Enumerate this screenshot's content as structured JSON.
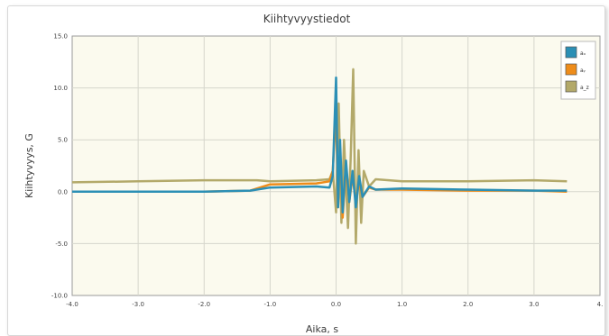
{
  "chart_data": {
    "type": "line",
    "title": "Kiihtyvyystiedot",
    "xlabel": "Aika, s",
    "ylabel": "Kiihtyvyys, G",
    "xlim": [
      -4.0,
      4.0
    ],
    "ylim": [
      -10.0,
      15.0
    ],
    "x_ticks": [
      "-4.0",
      "-3.0",
      "-2.0",
      "-1.0",
      "0.0",
      "1.0",
      "2.0",
      "3.0",
      "4."
    ],
    "y_ticks": [
      "15.0",
      "10.0",
      "5.0",
      "0.0",
      "-5.0",
      "-10.0"
    ],
    "grid": true,
    "legend_position": "top-right",
    "plot_background": "#fbfaee",
    "series": [
      {
        "name": "aₓ",
        "color": "#2b8fb5",
        "x": [
          -4.0,
          -3.0,
          -2.0,
          -1.3,
          -1.0,
          -0.3,
          -0.1,
          -0.05,
          0.0,
          0.03,
          0.06,
          0.1,
          0.15,
          0.2,
          0.25,
          0.3,
          0.35,
          0.4,
          0.5,
          0.6,
          1.0,
          2.0,
          3.0,
          3.5
        ],
        "values": [
          0.0,
          0.0,
          0.0,
          0.1,
          0.4,
          0.5,
          0.4,
          1.5,
          11.0,
          -1.5,
          5.0,
          -2.0,
          3.0,
          -1.0,
          2.0,
          -1.5,
          1.5,
          -0.5,
          0.5,
          0.2,
          0.3,
          0.2,
          0.1,
          0.1
        ]
      },
      {
        "name": "aᵧ",
        "color": "#ee8c1a",
        "x": [
          -4.0,
          -3.0,
          -2.0,
          -1.3,
          -1.1,
          -1.0,
          -0.3,
          -0.1,
          -0.05,
          0.0,
          0.03,
          0.06,
          0.1,
          0.15,
          0.2,
          0.25,
          0.3,
          0.35,
          0.4,
          0.5,
          0.6,
          1.0,
          2.0,
          3.0,
          3.5
        ],
        "values": [
          0.0,
          0.0,
          0.0,
          0.1,
          0.5,
          0.7,
          0.8,
          1.0,
          2.0,
          7.8,
          -1.5,
          4.0,
          -2.5,
          2.5,
          -1.0,
          1.5,
          -1.0,
          1.0,
          -0.5,
          0.4,
          0.2,
          0.2,
          0.1,
          0.1,
          0.0
        ]
      },
      {
        "name": "a_z",
        "color": "#b3a96a",
        "x": [
          -4.0,
          -3.0,
          -2.0,
          -1.2,
          -1.0,
          -0.3,
          -0.1,
          -0.05,
          0.0,
          0.04,
          0.08,
          0.12,
          0.18,
          0.22,
          0.26,
          0.3,
          0.34,
          0.38,
          0.42,
          0.5,
          0.6,
          1.0,
          2.0,
          3.0,
          3.5
        ],
        "values": [
          0.9,
          1.0,
          1.1,
          1.1,
          1.0,
          1.1,
          1.2,
          2.0,
          -2.0,
          8.5,
          -3.0,
          5.0,
          -3.5,
          3.0,
          11.8,
          -5.0,
          4.0,
          -3.0,
          2.0,
          0.5,
          1.2,
          1.0,
          1.0,
          1.1,
          1.0
        ]
      }
    ]
  }
}
